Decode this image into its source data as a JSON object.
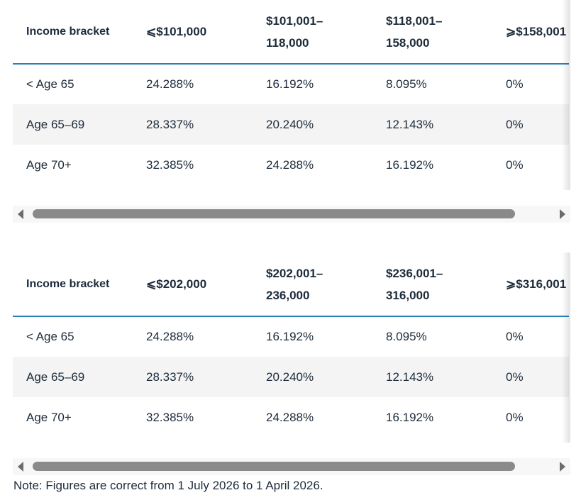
{
  "tables": [
    {
      "headers": [
        "Income bracket",
        "⩽$101,000",
        "$101,001–\n118,000",
        "$118,001–\n158,000",
        "⩾$158,001"
      ],
      "rows": [
        [
          "< Age 65",
          "24.288%",
          "16.192%",
          "8.095%",
          "0%"
        ],
        [
          "Age 65–69",
          "28.337%",
          "20.240%",
          "12.143%",
          "0%"
        ],
        [
          "Age 70+",
          "32.385%",
          "24.288%",
          "16.192%",
          "0%"
        ]
      ]
    },
    {
      "headers": [
        "Income bracket",
        "⩽$202,000",
        "$202,001–\n236,000",
        "$236,001–\n316,000",
        "⩾$316,001"
      ],
      "rows": [
        [
          "< Age 65",
          "24.288%",
          "16.192%",
          "8.095%",
          "0%"
        ],
        [
          "Age 65–69",
          "28.337%",
          "20.240%",
          "12.143%",
          "0%"
        ],
        [
          "Age 70+",
          "32.385%",
          "24.288%",
          "16.192%",
          "0%"
        ]
      ]
    }
  ],
  "note": "Note: Figures are correct from 1 July 2026 to 1 April 2026.",
  "icons": {
    "scroll_left": "triangle-left-icon",
    "scroll_right": "triangle-right-icon"
  },
  "colors": {
    "header_rule": "#2b7fb8",
    "stripe": "#f4f4f4",
    "text": "#1d2b3a",
    "scroll_thumb": "#8a8a8a"
  }
}
